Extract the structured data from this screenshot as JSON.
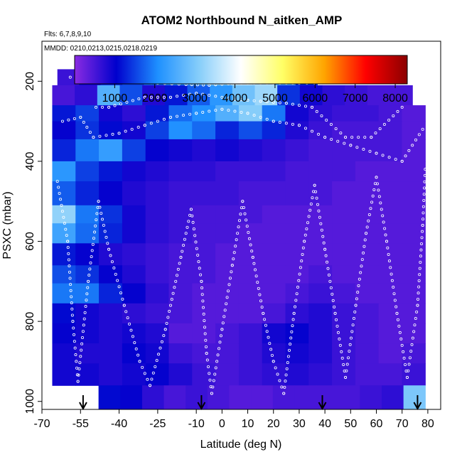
{
  "chart_data": {
    "type": "heatmap",
    "title": "ATOM2 Northbound N_aitken_AMP",
    "flights_note": "Flts: 6,7,8,9,10",
    "dates_note": "MMDD: 0210,0213,0215,0218,0219",
    "xlabel": "Latitude (deg N)",
    "ylabel": "PSXC (mbar)",
    "xlim": [
      -70,
      85
    ],
    "ylim": [
      1020,
      100
    ],
    "x_ticks": [
      -70,
      -55,
      -40,
      -25,
      -10,
      0,
      10,
      20,
      30,
      40,
      50,
      60,
      70,
      80
    ],
    "y_ticks": [
      200,
      400,
      600,
      800,
      1000
    ],
    "colorbar": {
      "range": [
        0,
        8300
      ],
      "ticks": [
        1000,
        2000,
        3000,
        4000,
        5000,
        6000,
        7000,
        8000
      ],
      "colors": [
        "#8a2be2",
        "#0000cd",
        "#1e90ff",
        "#87cefa",
        "#ffffff",
        "#ffff66",
        "#ffa500",
        "#ff0000",
        "#8b0000"
      ]
    },
    "pressure_bins": [
      {
        "top": 170,
        "bottom": 210,
        "lat_range": [
          -64,
          37
        ],
        "values": [
          600,
          900,
          1300,
          1500,
          1800,
          2200,
          2600,
          3200,
          3800,
          3600,
          2600,
          1400
        ]
      },
      {
        "top": 210,
        "bottom": 260,
        "lat_range": [
          -66,
          74
        ],
        "values": [
          500,
          700,
          2600,
          1600,
          800,
          1200,
          1700,
          2200,
          2900,
          3300,
          1400,
          900,
          700,
          600,
          500,
          500
        ]
      },
      {
        "top": 260,
        "bottom": 300,
        "lat_range": [
          -66,
          79
        ],
        "values": [
          1200,
          1500,
          900,
          700,
          1200,
          1800,
          2100,
          2600,
          3100,
          1900,
          900,
          700,
          600,
          600,
          500,
          400
        ]
      },
      {
        "top": 300,
        "bottom": 345,
        "lat_range": [
          -66,
          79
        ],
        "values": [
          1000,
          1400,
          1100,
          900,
          1500,
          2100,
          1800,
          1300,
          1600,
          1300,
          800,
          600,
          500,
          500,
          500,
          400
        ]
      },
      {
        "top": 345,
        "bottom": 400,
        "lat_range": [
          -66,
          79
        ],
        "values": [
          1300,
          1900,
          2300,
          1500,
          1000,
          900,
          800,
          900,
          800,
          700,
          600,
          500,
          500,
          500,
          500,
          400
        ]
      },
      {
        "top": 400,
        "bottom": 450,
        "lat_range": [
          -66,
          79
        ],
        "values": [
          2200,
          1500,
          1200,
          900,
          800,
          700,
          700,
          600,
          600,
          600,
          500,
          500,
          500,
          400,
          400,
          400
        ]
      },
      {
        "top": 450,
        "bottom": 510,
        "lat_range": [
          -66,
          79
        ],
        "values": [
          1700,
          1300,
          1000,
          800,
          700,
          600,
          600,
          600,
          500,
          500,
          500,
          500,
          400,
          400,
          400,
          400
        ]
      },
      {
        "top": 510,
        "bottom": 555,
        "lat_range": [
          -66,
          79
        ],
        "values": [
          3200,
          1900,
          1400,
          900,
          700,
          600,
          500,
          500,
          500,
          400,
          400,
          400,
          400,
          400,
          400,
          400
        ]
      },
      {
        "top": 555,
        "bottom": 605,
        "lat_range": [
          -66,
          79
        ],
        "values": [
          2400,
          1800,
          1300,
          900,
          700,
          600,
          500,
          500,
          400,
          400,
          400,
          400,
          400,
          400,
          400,
          400
        ]
      },
      {
        "top": 605,
        "bottom": 660,
        "lat_range": [
          -66,
          79
        ],
        "values": [
          1200,
          1000,
          800,
          700,
          600,
          500,
          500,
          400,
          400,
          400,
          400,
          400,
          400,
          400,
          400,
          400
        ]
      },
      {
        "top": 660,
        "bottom": 705,
        "lat_range": [
          -66,
          79
        ],
        "values": [
          1600,
          1400,
          1000,
          800,
          600,
          500,
          500,
          400,
          400,
          400,
          400,
          500,
          400,
          400,
          400,
          400
        ]
      },
      {
        "top": 705,
        "bottom": 755,
        "lat_range": [
          -66,
          79
        ],
        "values": [
          1900,
          1900,
          1300,
          1000,
          700,
          500,
          400,
          400,
          400,
          400,
          500,
          600,
          500,
          400,
          400,
          400
        ]
      },
      {
        "top": 755,
        "bottom": 805,
        "lat_range": [
          -66,
          79
        ],
        "values": [
          1100,
          900,
          800,
          700,
          600,
          500,
          400,
          400,
          400,
          500,
          700,
          800,
          600,
          500,
          400,
          400
        ]
      },
      {
        "top": 805,
        "bottom": 855,
        "lat_range": [
          -66,
          79
        ],
        "values": [
          1000,
          900,
          800,
          900,
          800,
          400,
          400,
          500,
          600,
          900,
          1000,
          800,
          600,
          500,
          400,
          400
        ]
      },
      {
        "top": 855,
        "bottom": 905,
        "lat_range": [
          -66,
          79
        ],
        "values": [
          900,
          800,
          800,
          1000,
          900,
          600,
          500,
          500,
          600,
          800,
          900,
          800,
          600,
          500,
          400,
          500
        ]
      },
      {
        "top": 905,
        "bottom": 960,
        "lat_range": [
          -66,
          79
        ],
        "values": [
          900,
          900,
          800,
          900,
          1000,
          800,
          600,
          500,
          600,
          700,
          800,
          700,
          600,
          500,
          500,
          600
        ]
      },
      {
        "top": 960,
        "bottom": 1020,
        "lat_range": [
          -48,
          79
        ],
        "values": [
          1100,
          1000,
          700,
          500,
          600,
          500,
          400,
          400,
          500,
          500,
          500,
          500,
          600,
          700,
          3000
        ]
      }
    ],
    "flight_tracks": [
      {
        "name": "high-altitude-legs",
        "points": [
          [
            -59,
            190
          ],
          [
            -52,
            195
          ],
          [
            -40,
            200
          ],
          [
            -25,
            205
          ],
          [
            -14,
            208
          ],
          [
            -5,
            210
          ],
          [
            5,
            205
          ],
          [
            20,
            205
          ],
          [
            30,
            205
          ],
          [
            36,
            205
          ]
        ]
      },
      {
        "name": "upper-legs",
        "points": [
          [
            -49,
            265
          ],
          [
            -44,
            265
          ],
          [
            -30,
            240
          ],
          [
            -20,
            240
          ],
          [
            -10,
            230
          ],
          [
            5,
            245
          ],
          [
            15,
            250
          ],
          [
            25,
            255
          ],
          [
            35,
            265
          ],
          [
            48,
            340
          ],
          [
            58,
            340
          ],
          [
            70,
            265
          ]
        ]
      },
      {
        "name": "mid-legs",
        "points": [
          [
            -62,
            300
          ],
          [
            -55,
            290
          ],
          [
            -50,
            340
          ],
          [
            -40,
            330
          ],
          [
            -30,
            310
          ],
          [
            -20,
            290
          ],
          [
            -10,
            280
          ],
          [
            0,
            270
          ],
          [
            10,
            280
          ],
          [
            20,
            300
          ],
          [
            30,
            310
          ],
          [
            40,
            340
          ],
          [
            50,
            360
          ],
          [
            60,
            380
          ],
          [
            70,
            400
          ],
          [
            78,
            320
          ]
        ]
      },
      {
        "name": "profiles",
        "points": [
          [
            -64,
            450
          ],
          [
            -60,
            600
          ],
          [
            -58,
            800
          ],
          [
            -56,
            950
          ],
          [
            -52,
            700
          ],
          [
            -48,
            500
          ],
          [
            -44,
            620
          ],
          [
            -38,
            760
          ],
          [
            -32,
            900
          ],
          [
            -28,
            960
          ],
          [
            -22,
            820
          ],
          [
            -16,
            640
          ],
          [
            -12,
            520
          ],
          [
            -8,
            700
          ],
          [
            -6,
            880
          ],
          [
            -4,
            980
          ],
          [
            0,
            820
          ],
          [
            4,
            660
          ],
          [
            8,
            500
          ],
          [
            12,
            640
          ],
          [
            16,
            780
          ],
          [
            20,
            900
          ],
          [
            24,
            980
          ],
          [
            28,
            780
          ],
          [
            32,
            600
          ],
          [
            36,
            460
          ],
          [
            40,
            620
          ],
          [
            44,
            780
          ],
          [
            48,
            940
          ],
          [
            52,
            760
          ],
          [
            56,
            580
          ],
          [
            60,
            440
          ],
          [
            64,
            600
          ],
          [
            68,
            780
          ],
          [
            72,
            940
          ],
          [
            76,
            760
          ],
          [
            78,
            560
          ],
          [
            79,
            420
          ]
        ]
      }
    ],
    "markers": [
      -54,
      -8,
      39,
      76
    ],
    "marker_note": "down arrows mark flight profile locations"
  }
}
